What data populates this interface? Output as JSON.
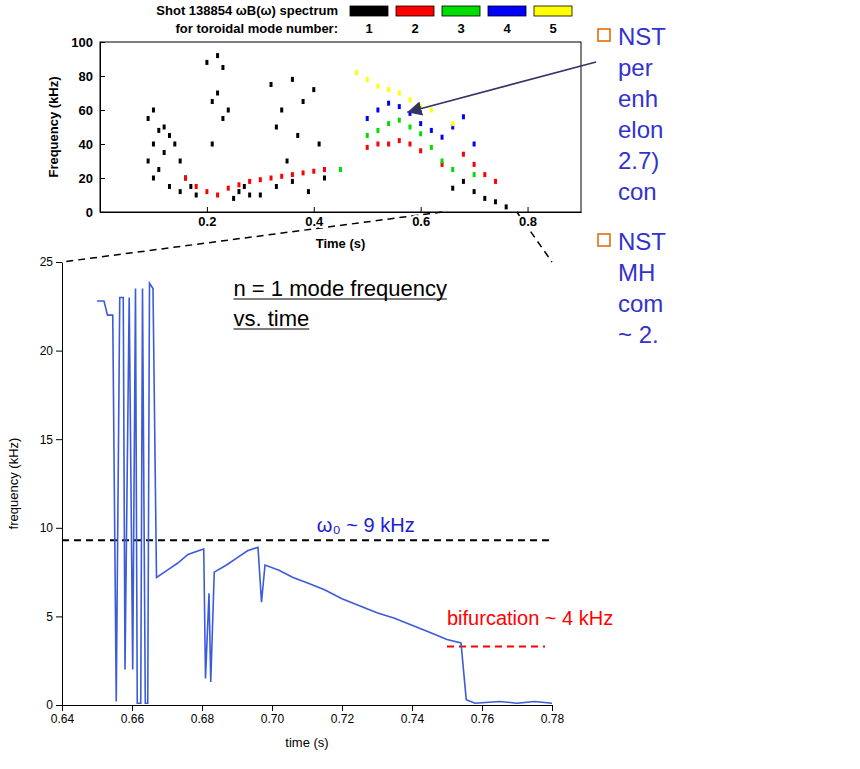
{
  "chart_data": [
    {
      "type": "scatter",
      "title": "Shot 138854 ωB(ω) spectrum",
      "legend_title": "for toroidal mode number:",
      "legend": "top",
      "x_label": "Time (s)",
      "y_label": "Frequency (kHz)",
      "xlim": [
        0,
        0.9
      ],
      "xticks": [
        0.2,
        0.4,
        0.6,
        0.8
      ],
      "ylim": [
        0,
        100
      ],
      "yticks": [
        0,
        20,
        40,
        60,
        80,
        100
      ],
      "grid": false,
      "marker": "square",
      "series": [
        {
          "name": "1",
          "color": "#000000",
          "x": [
            0.09,
            0.09,
            0.1,
            0.1,
            0.1,
            0.11,
            0.11,
            0.12,
            0.12,
            0.13,
            0.13,
            0.14,
            0.15,
            0.15,
            0.16,
            0.17,
            0.18,
            0.2,
            0.21,
            0.21,
            0.22,
            0.22,
            0.23,
            0.23,
            0.24,
            0.25,
            0.26,
            0.27,
            0.28,
            0.3,
            0.32,
            0.33,
            0.34,
            0.35,
            0.36,
            0.37,
            0.38,
            0.4,
            0.41,
            0.33,
            0.36,
            0.39,
            0.42,
            0.66,
            0.68,
            0.7,
            0.72,
            0.74,
            0.76
          ],
          "values": [
            55,
            30,
            60,
            40,
            20,
            48,
            25,
            50,
            35,
            45,
            15,
            40,
            30,
            12,
            20,
            15,
            10,
            88,
            65,
            40,
            92,
            70,
            85,
            55,
            60,
            8,
            12,
            15,
            10,
            10,
            75,
            50,
            60,
            30,
            78,
            45,
            65,
            72,
            40,
            15,
            18,
            12,
            20,
            14,
            18,
            12,
            8,
            6,
            3
          ]
        },
        {
          "name": "2",
          "color": "#ff0000",
          "x": [
            0.16,
            0.18,
            0.2,
            0.22,
            0.24,
            0.26,
            0.28,
            0.3,
            0.32,
            0.34,
            0.36,
            0.38,
            0.4,
            0.42,
            0.5,
            0.52,
            0.54,
            0.56,
            0.58,
            0.6,
            0.64,
            0.68,
            0.7,
            0.72,
            0.74
          ],
          "values": [
            20,
            15,
            12,
            10,
            14,
            16,
            18,
            19,
            20,
            21,
            22,
            23,
            24,
            25,
            38,
            40,
            40,
            42,
            40,
            36,
            28,
            34,
            28,
            22,
            18
          ]
        },
        {
          "name": "3",
          "color": "#00dd00",
          "x": [
            0.45,
            0.5,
            0.52,
            0.54,
            0.56,
            0.58,
            0.6,
            0.62,
            0.64,
            0.66,
            0.7
          ],
          "values": [
            25,
            45,
            48,
            52,
            54,
            50,
            46,
            38,
            30,
            25,
            22
          ]
        },
        {
          "name": "4",
          "color": "#0000ff",
          "x": [
            0.5,
            0.52,
            0.54,
            0.56,
            0.58,
            0.6,
            0.62,
            0.64,
            0.66,
            0.68,
            0.7
          ],
          "values": [
            55,
            60,
            64,
            62,
            58,
            52,
            48,
            44,
            50,
            56,
            40
          ]
        },
        {
          "name": "5",
          "color": "#ffff00",
          "x": [
            0.48,
            0.5,
            0.52,
            0.54,
            0.56,
            0.58,
            0.6,
            0.62,
            0.66
          ],
          "values": [
            82,
            78,
            74,
            72,
            70,
            66,
            62,
            60,
            52
          ]
        }
      ]
    },
    {
      "type": "line",
      "title": [
        "n = 1 mode frequency",
        "vs. time"
      ],
      "x_label": "time (s)",
      "y_label": "frequency (kHz)",
      "xlim": [
        0.64,
        0.78
      ],
      "xticks": [
        0.64,
        0.66,
        0.68,
        {
          "value": 0.7,
          "label": "0.70"
        },
        0.72,
        0.74,
        0.76,
        0.78
      ],
      "ylim": [
        0,
        25
      ],
      "yticks": [
        0,
        5,
        10,
        15,
        20,
        25
      ],
      "grid": false,
      "color": "#3b5bdb",
      "line_style": "solid",
      "x": [
        0.65,
        0.652,
        0.653,
        0.6545,
        0.6555,
        0.6565,
        0.6575,
        0.658,
        0.6592,
        0.6602,
        0.661,
        0.6615,
        0.6625,
        0.663,
        0.6638,
        0.6645,
        0.665,
        0.666,
        0.667,
        0.67,
        0.673,
        0.676,
        0.679,
        0.6805,
        0.681,
        0.682,
        0.6825,
        0.6835,
        0.687,
        0.69,
        0.693,
        0.696,
        0.697,
        0.698,
        0.702,
        0.706,
        0.71,
        0.715,
        0.72,
        0.725,
        0.73,
        0.735,
        0.74,
        0.745,
        0.75,
        0.754,
        0.7555,
        0.758,
        0.765,
        0.77,
        0.775,
        0.78
      ],
      "values": [
        22.8,
        22.8,
        22,
        22,
        0.2,
        23,
        23,
        2,
        23,
        2,
        23.5,
        0.1,
        0.1,
        23.5,
        0.1,
        0.1,
        23.8,
        23.5,
        7.2,
        7.6,
        8,
        8.5,
        8.7,
        8.8,
        1.5,
        6.3,
        1.3,
        7.5,
        7.9,
        8.3,
        8.7,
        8.9,
        5.8,
        7.9,
        7.6,
        7.2,
        6.9,
        6.5,
        6,
        5.6,
        5.2,
        4.9,
        4.5,
        4.1,
        3.7,
        3.5,
        0.3,
        0.1,
        0.2,
        0.1,
        0.2,
        0.1
      ],
      "reference_lines": [
        {
          "y": 9.3,
          "x": [
            0.64,
            0.78
          ],
          "color": "#000000",
          "line_style": "dashed"
        },
        {
          "y": 3.3,
          "x": [
            0.75,
            0.778
          ],
          "color": "#ff0000",
          "line_style": "dashed"
        }
      ],
      "annotations": [
        {
          "text": "ω₀ ~ 9 kHz",
          "color": "#2020d0"
        },
        {
          "text": "bifurcation ~ 4 kHz",
          "color": "#ff0000"
        }
      ]
    }
  ],
  "slide": {
    "bullets": [
      [
        "NST",
        "per",
        "enh",
        "elon",
        "2.7)",
        "con"
      ],
      [
        "NST",
        "MH",
        "com",
        "~ 2."
      ]
    ]
  }
}
